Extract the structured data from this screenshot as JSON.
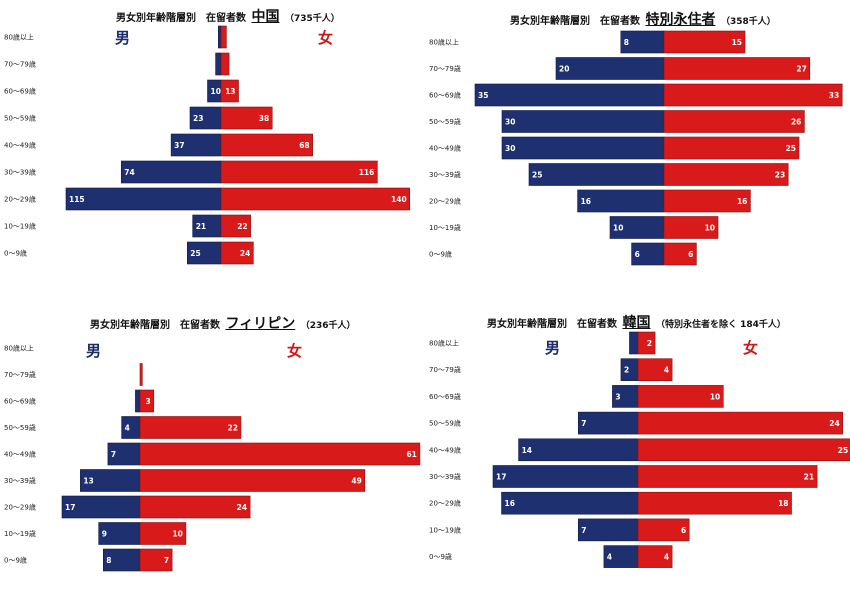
{
  "colors": {
    "male": "#1f3070",
    "female": "#d91a1a",
    "male_label": "#1b2c6b",
    "female_label": "#d01818"
  },
  "chart_data": [
    {
      "type": "bar",
      "title_prefix": "男女別年齢階層別　在留者数",
      "title_country": "中国",
      "title_total": "（735千人）",
      "male_label": "男",
      "female_label": "女",
      "categories": [
        "80歳以上",
        "70～79歳",
        "60～69歳",
        "50～59歳",
        "40～49歳",
        "30～39歳",
        "20～29歳",
        "10～19歳",
        "0～9歳"
      ],
      "series": [
        {
          "name": "男",
          "values": [
            2,
            4,
            10,
            23,
            37,
            74,
            115,
            21,
            25
          ],
          "labels": [
            "",
            "",
            "10",
            "23",
            "37",
            "74",
            "115",
            "21",
            "25"
          ]
        },
        {
          "name": "女",
          "values": [
            4,
            6,
            13,
            38,
            68,
            116,
            140,
            22,
            24
          ],
          "labels": [
            "",
            "",
            "13",
            "38",
            "68",
            "116",
            "140",
            "22",
            "24"
          ]
        }
      ]
    },
    {
      "type": "bar",
      "title_prefix": "男女別年齢階層別　在留者数",
      "title_country": "特別永住者",
      "title_total": "（358千人）",
      "male_label": "",
      "female_label": "",
      "categories": [
        "80歳以上",
        "70～79歳",
        "60～69歳",
        "50～59歳",
        "40～49歳",
        "30～39歳",
        "20～29歳",
        "10～19歳",
        "0～9歳"
      ],
      "series": [
        {
          "name": "男",
          "values": [
            8,
            20,
            35,
            30,
            30,
            25,
            16,
            10,
            6
          ],
          "labels": [
            "8",
            "20",
            "35",
            "30",
            "30",
            "25",
            "16",
            "10",
            "6"
          ]
        },
        {
          "name": "女",
          "values": [
            15,
            27,
            33,
            26,
            25,
            23,
            16,
            10,
            6
          ],
          "labels": [
            "15",
            "27",
            "33",
            "26",
            "25",
            "23",
            "16",
            "10",
            "6"
          ]
        }
      ]
    },
    {
      "type": "bar",
      "title_prefix": "男女別年齢階層別　在留者数",
      "title_country": "フィリピン",
      "title_total": "（236千人）",
      "male_label": "男",
      "female_label": "女",
      "categories": [
        "80歳以上",
        "70～79歳",
        "60～69歳",
        "50～59歳",
        "40～49歳",
        "30～39歳",
        "20～29歳",
        "10～19歳",
        "0～9歳"
      ],
      "series": [
        {
          "name": "男",
          "values": [
            0,
            0,
            1,
            4,
            7,
            13,
            17,
            9,
            8
          ],
          "labels": [
            "",
            "",
            "",
            "4",
            "7",
            "13",
            "17",
            "9",
            "8"
          ]
        },
        {
          "name": "女",
          "values": [
            0,
            0.5,
            3,
            22,
            61,
            49,
            24,
            10,
            7
          ],
          "labels": [
            "",
            "",
            "3",
            "22",
            "61",
            "49",
            "24",
            "10",
            "7"
          ]
        }
      ]
    },
    {
      "type": "bar",
      "title_prefix": "男女別年齢階層別　在留者数",
      "title_country": "韓国",
      "title_total": "（特別永住者を除く 184千人）",
      "male_label": "男",
      "female_label": "女",
      "categories": [
        "80歳以上",
        "70～79歳",
        "60～69歳",
        "50～59歳",
        "40～49歳",
        "30～39歳",
        "20～29歳",
        "10～19歳",
        "0～9歳"
      ],
      "series": [
        {
          "name": "男",
          "values": [
            1,
            2,
            3,
            7,
            14,
            17,
            16,
            7,
            4
          ],
          "labels": [
            "",
            "2",
            "3",
            "7",
            "14",
            "17",
            "16",
            "7",
            "4"
          ]
        },
        {
          "name": "女",
          "values": [
            2,
            4,
            10,
            24,
            25,
            21,
            18,
            6,
            4
          ],
          "labels": [
            "2",
            "4",
            "10",
            "24",
            "25",
            "21",
            "18",
            "6",
            "4"
          ]
        }
      ]
    }
  ]
}
